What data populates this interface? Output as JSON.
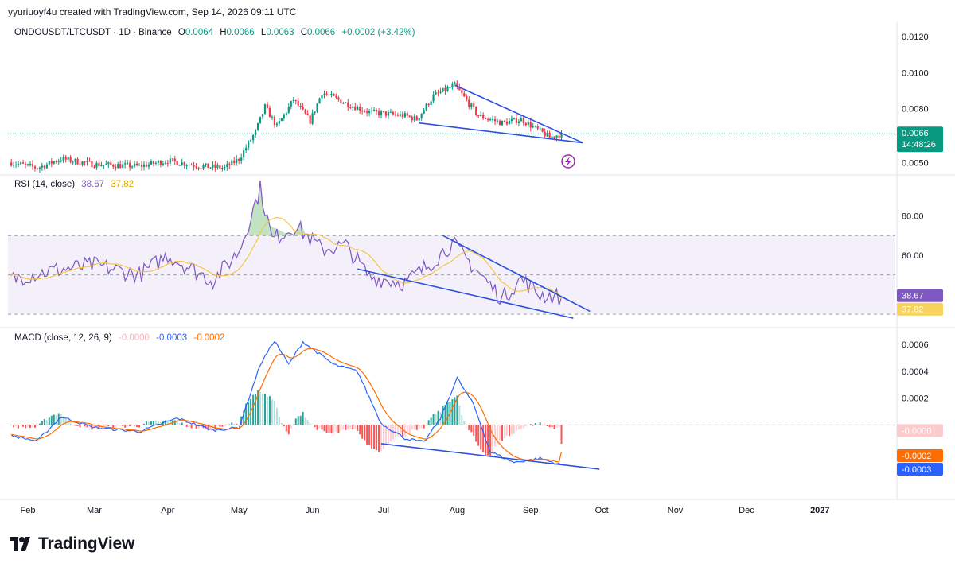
{
  "header": {
    "text": "yyuriuoyf4u created with TradingView.com, Sep 14, 2026 09:11 UTC"
  },
  "legend": {
    "symbol": "ONDOUSDT/LTCUSDT · 1D · Binance",
    "o_label": "O",
    "o": "0.0064",
    "h_label": "H",
    "h": "0.0066",
    "l_label": "L",
    "l": "0.0063",
    "c_label": "C",
    "c": "0.0066",
    "change": "+0.0002 (+3.42%)"
  },
  "rsi_legend": {
    "label": "RSI (14, close)",
    "rsi": "38.67",
    "ma": "37.82"
  },
  "macd_legend": {
    "label": "MACD (close, 12, 26, 9)",
    "hist": "-0.0000",
    "macd": "-0.0003",
    "signal": "-0.0002"
  },
  "price_tag": {
    "value": "0.0066",
    "countdown": "14:48:26"
  },
  "brand": {
    "name": "TradingView",
    "logo_icon": "tradingview-logo-icon"
  },
  "colors": {
    "up": "#089981",
    "down": "#f23645",
    "rsi": "#7e57c2",
    "rsi_ma": "#f7c33f",
    "macd": "#2962ff",
    "signal": "#ff6d00",
    "trendline": "#2b50e0"
  },
  "chart_data": [
    {
      "type": "candlestick",
      "title": "ONDOUSDT/LTCUSDT · 1D · Binance",
      "x_axis_labels": [
        "Feb",
        "Mar",
        "Apr",
        "May",
        "Jun",
        "Jul",
        "Aug",
        "Sep",
        "Oct",
        "Nov",
        "Dec",
        "2027"
      ],
      "y_ticks": [
        "0.0050",
        "0.0080",
        "0.0100",
        "0.0120"
      ],
      "ylim": [
        0.0044,
        0.0128
      ],
      "last_price": 0.0066,
      "anchors": [
        [
          "2026-01-25",
          0.005
        ],
        [
          "2026-02-05",
          0.0047
        ],
        [
          "2026-02-15",
          0.0052
        ],
        [
          "2026-03-01",
          0.0049
        ],
        [
          "2026-03-20",
          0.0048
        ],
        [
          "2026-04-01",
          0.0051
        ],
        [
          "2026-04-15",
          0.0048
        ],
        [
          "2026-04-25",
          0.0047
        ],
        [
          "2026-05-01",
          0.0052
        ],
        [
          "2026-05-08",
          0.0067
        ],
        [
          "2026-05-12",
          0.0081
        ],
        [
          "2026-05-17",
          0.007
        ],
        [
          "2026-05-24",
          0.0085
        ],
        [
          "2026-05-31",
          0.0073
        ],
        [
          "2026-06-05",
          0.0089
        ],
        [
          "2026-06-15",
          0.0083
        ],
        [
          "2026-06-25",
          0.0078
        ],
        [
          "2026-07-10",
          0.0076
        ],
        [
          "2026-07-15",
          0.0074
        ],
        [
          "2026-07-22",
          0.0087
        ],
        [
          "2026-07-31",
          0.0093
        ],
        [
          "2026-08-10",
          0.0076
        ],
        [
          "2026-08-20",
          0.0072
        ],
        [
          "2026-08-28",
          0.0074
        ],
        [
          "2026-09-09",
          0.0064
        ],
        [
          "2026-09-14",
          0.0066
        ]
      ],
      "trendlines": [
        {
          "from": [
            "2026-07-31",
            0.0093
          ],
          "to": [
            "2026-09-23",
            0.0061
          ]
        },
        {
          "from": [
            "2026-07-16",
            0.0072
          ],
          "to": [
            "2026-09-23",
            0.0061
          ]
        }
      ]
    },
    {
      "type": "line",
      "title": "RSI (14, close)",
      "y_ticks": [
        "60.00",
        "80.00"
      ],
      "ylim": [
        24,
        100
      ],
      "band": [
        30,
        70
      ],
      "midline": 50,
      "last_rsi": 38.67,
      "last_ma": 37.82,
      "anchors": [
        [
          "2026-01-25",
          48
        ],
        [
          "2026-02-10",
          52
        ],
        [
          "2026-03-01",
          55
        ],
        [
          "2026-03-20",
          50
        ],
        [
          "2026-04-01",
          60
        ],
        [
          "2026-04-20",
          47
        ],
        [
          "2026-05-01",
          62
        ],
        [
          "2026-05-10",
          94
        ],
        [
          "2026-05-15",
          68
        ],
        [
          "2026-05-25",
          75
        ],
        [
          "2026-06-05",
          63
        ],
        [
          "2026-06-15",
          65
        ],
        [
          "2026-06-25",
          49
        ],
        [
          "2026-07-10",
          46
        ],
        [
          "2026-07-20",
          55
        ],
        [
          "2026-07-30",
          66
        ],
        [
          "2026-08-05",
          58
        ],
        [
          "2026-08-20",
          38
        ],
        [
          "2026-08-28",
          48
        ],
        [
          "2026-09-05",
          40
        ],
        [
          "2026-09-14",
          38.67
        ]
      ],
      "trendlines": [
        {
          "from": [
            "2026-07-26",
            70
          ],
          "to": [
            "2026-09-26",
            31.5
          ]
        },
        {
          "from": [
            "2026-06-20",
            53
          ],
          "to": [
            "2026-09-19",
            28
          ]
        }
      ]
    },
    {
      "type": "line",
      "title": "MACD (close, 12, 26, 9)",
      "y_ticks": [
        "0.0002",
        "0.0004",
        "0.0006"
      ],
      "ylim": [
        -0.00055,
        0.00072
      ],
      "zero": 0,
      "last_hist": -0.0,
      "last_macd": -0.0003,
      "last_signal": -0.0002,
      "anchors": [
        [
          "2026-01-25",
          -8e-05
        ],
        [
          "2026-02-05",
          -0.00012
        ],
        [
          "2026-02-15",
          6e-05
        ],
        [
          "2026-03-01",
          -2e-05
        ],
        [
          "2026-03-20",
          -5e-05
        ],
        [
          "2026-04-05",
          5e-05
        ],
        [
          "2026-04-20",
          -4e-05
        ],
        [
          "2026-05-01",
          -2e-05
        ],
        [
          "2026-05-10",
          0.00045
        ],
        [
          "2026-05-16",
          0.00063
        ],
        [
          "2026-05-22",
          0.00045
        ],
        [
          "2026-05-28",
          0.00062
        ],
        [
          "2026-06-10",
          0.00045
        ],
        [
          "2026-06-20",
          0.0004
        ],
        [
          "2026-06-30",
          1e-05
        ],
        [
          "2026-07-10",
          -0.0001
        ],
        [
          "2026-07-18",
          -0.00013
        ],
        [
          "2026-07-25",
          5e-05
        ],
        [
          "2026-08-01",
          0.00035
        ],
        [
          "2026-08-08",
          0.00015
        ],
        [
          "2026-08-15",
          -0.0002
        ],
        [
          "2026-08-25",
          -0.00028
        ],
        [
          "2026-09-05",
          -0.00025
        ],
        [
          "2026-09-14",
          -0.0003
        ]
      ],
      "trendlines": [
        {
          "from": [
            "2026-06-30",
            -0.00014
          ],
          "to": [
            "2026-09-30",
            -0.00033
          ]
        }
      ]
    }
  ]
}
